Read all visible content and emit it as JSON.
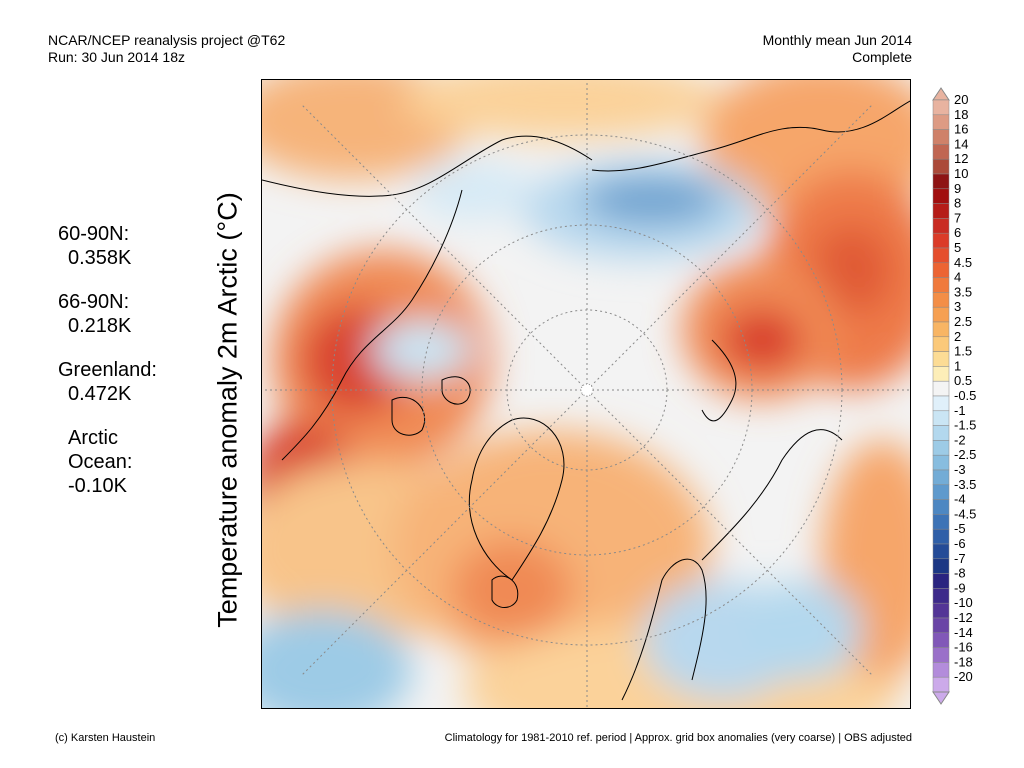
{
  "header": {
    "left_line1": "NCAR/NCEP reanalysis project @T62",
    "left_line2": "Run: 30 Jun 2014 18z",
    "right_line1": "Monthly mean Jun 2014",
    "right_line2": "Complete"
  },
  "stats": [
    {
      "label": "60-90N:",
      "value": "0.358K"
    },
    {
      "label": "66-90N:",
      "value": "0.218K"
    },
    {
      "label": "Greenland:",
      "value": "0.472K"
    },
    {
      "label": "Arctic\nOcean:",
      "value": "-0.10K"
    }
  ],
  "vertical_title": "Temperature anomaly 2m Arctic (°C)",
  "colorbar": {
    "levels": [
      "20",
      "18",
      "16",
      "14",
      "12",
      "10",
      "9",
      "8",
      "7",
      "6",
      "5",
      "4.5",
      "4",
      "3.5",
      "3",
      "2.5",
      "2",
      "1.5",
      "1",
      "0.5",
      "-0.5",
      "-1",
      "-1.5",
      "-2",
      "-2.5",
      "-3",
      "-3.5",
      "-4",
      "-4.5",
      "-5",
      "-6",
      "-7",
      "-8",
      "-9",
      "-10",
      "-12",
      "-14",
      "-16",
      "-18",
      "-20"
    ],
    "colors": [
      "#e8b3a0",
      "#dd9b84",
      "#cf8169",
      "#c06652",
      "#ab4a39",
      "#8e1414",
      "#a10f0f",
      "#b51c18",
      "#c92b22",
      "#db3b28",
      "#e54e2d",
      "#ec6433",
      "#f07a3c",
      "#f38e47",
      "#f6a052",
      "#f8b564",
      "#fbc97a",
      "#fcdc95",
      "#fdeeb8",
      "#f4f4f4",
      "#e0f0fa",
      "#cae5f4",
      "#b3d8ee",
      "#9dcbe6",
      "#88bddf",
      "#73acd6",
      "#5f9acd",
      "#4d87c2",
      "#3d73b6",
      "#2f5fa8",
      "#244b97",
      "#1b3784",
      "#2a2480",
      "#3d2a8a",
      "#533596",
      "#6a45a6",
      "#8158b8",
      "#9a70c9",
      "#b38cdb",
      "#ccaaea"
    ]
  },
  "footer": {
    "left": "(c) Karsten Haustein",
    "right": "Climatology for 1981-2010 ref. period | Approx. grid box anomalies (very coarse) | OBS adjusted"
  }
}
